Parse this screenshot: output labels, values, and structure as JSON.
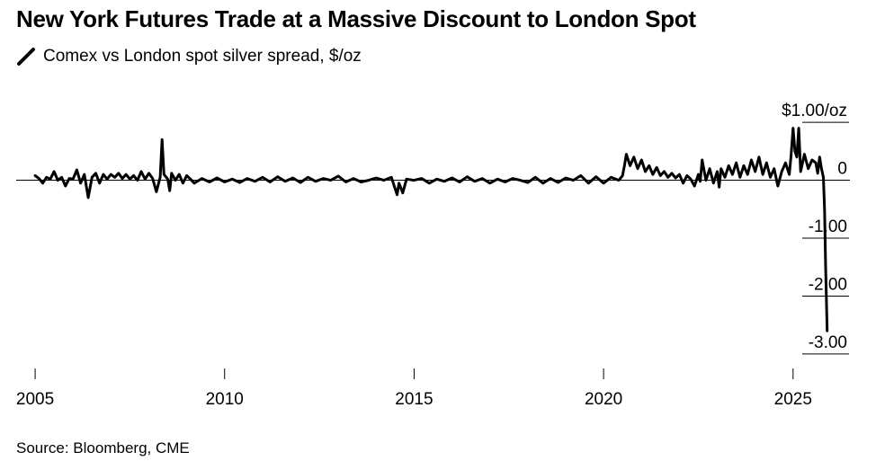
{
  "title": "New York Futures Trade at a Massive Discount to London Spot",
  "legend": {
    "label": "Comex vs London spot silver spread, $/oz",
    "color": "#000000"
  },
  "source": "Source: Bloomberg, CME",
  "chart_data": {
    "type": "line",
    "title": "New York Futures Trade at a Massive Discount to London Spot",
    "series": [
      {
        "name": "Comex vs London spot silver spread, $/oz",
        "color": "#000000",
        "points": [
          [
            2005.0,
            0.08
          ],
          [
            2005.1,
            0.03
          ],
          [
            2005.2,
            -0.05
          ],
          [
            2005.3,
            0.05
          ],
          [
            2005.4,
            0.02
          ],
          [
            2005.5,
            0.15
          ],
          [
            2005.6,
            0.0
          ],
          [
            2005.7,
            0.05
          ],
          [
            2005.8,
            -0.1
          ],
          [
            2005.9,
            0.03
          ],
          [
            2006.0,
            0.02
          ],
          [
            2006.1,
            0.18
          ],
          [
            2006.2,
            -0.05
          ],
          [
            2006.3,
            0.1
          ],
          [
            2006.4,
            -0.3
          ],
          [
            2006.5,
            0.05
          ],
          [
            2006.6,
            0.12
          ],
          [
            2006.7,
            -0.05
          ],
          [
            2006.8,
            0.1
          ],
          [
            2006.9,
            0.02
          ],
          [
            2007.0,
            0.1
          ],
          [
            2007.1,
            0.05
          ],
          [
            2007.2,
            0.12
          ],
          [
            2007.3,
            0.03
          ],
          [
            2007.4,
            0.1
          ],
          [
            2007.5,
            0.02
          ],
          [
            2007.6,
            0.08
          ],
          [
            2007.7,
            0.0
          ],
          [
            2007.8,
            0.15
          ],
          [
            2007.9,
            0.02
          ],
          [
            2008.0,
            0.12
          ],
          [
            2008.1,
            0.03
          ],
          [
            2008.2,
            -0.2
          ],
          [
            2008.3,
            0.05
          ],
          [
            2008.35,
            0.7
          ],
          [
            2008.4,
            0.1
          ],
          [
            2008.5,
            0.02
          ],
          [
            2008.55,
            -0.18
          ],
          [
            2008.6,
            0.12
          ],
          [
            2008.7,
            0.0
          ],
          [
            2008.8,
            0.1
          ],
          [
            2008.9,
            -0.05
          ],
          [
            2009.0,
            0.08
          ],
          [
            2009.1,
            0.02
          ],
          [
            2009.2,
            -0.05
          ],
          [
            2009.4,
            0.03
          ],
          [
            2009.6,
            -0.03
          ],
          [
            2009.8,
            0.04
          ],
          [
            2010.0,
            -0.03
          ],
          [
            2010.2,
            0.02
          ],
          [
            2010.4,
            -0.04
          ],
          [
            2010.6,
            0.03
          ],
          [
            2010.8,
            -0.02
          ],
          [
            2011.0,
            0.05
          ],
          [
            2011.2,
            -0.03
          ],
          [
            2011.4,
            0.06
          ],
          [
            2011.6,
            -0.02
          ],
          [
            2011.8,
            0.04
          ],
          [
            2012.0,
            -0.04
          ],
          [
            2012.2,
            0.05
          ],
          [
            2012.4,
            -0.02
          ],
          [
            2012.6,
            0.03
          ],
          [
            2012.8,
            0.0
          ],
          [
            2013.0,
            0.07
          ],
          [
            2013.2,
            -0.03
          ],
          [
            2013.4,
            0.03
          ],
          [
            2013.6,
            -0.03
          ],
          [
            2013.8,
            0.0
          ],
          [
            2014.0,
            0.04
          ],
          [
            2014.2,
            0.0
          ],
          [
            2014.4,
            0.05
          ],
          [
            2014.55,
            -0.25
          ],
          [
            2014.6,
            -0.05
          ],
          [
            2014.7,
            -0.22
          ],
          [
            2014.8,
            0.02
          ],
          [
            2015.0,
            0.0
          ],
          [
            2015.2,
            0.03
          ],
          [
            2015.4,
            -0.05
          ],
          [
            2015.6,
            0.02
          ],
          [
            2015.8,
            -0.02
          ],
          [
            2016.0,
            0.04
          ],
          [
            2016.2,
            -0.03
          ],
          [
            2016.4,
            0.06
          ],
          [
            2016.6,
            -0.02
          ],
          [
            2016.8,
            0.03
          ],
          [
            2017.0,
            -0.05
          ],
          [
            2017.2,
            0.02
          ],
          [
            2017.4,
            -0.03
          ],
          [
            2017.6,
            0.03
          ],
          [
            2017.8,
            0.0
          ],
          [
            2018.0,
            -0.04
          ],
          [
            2018.2,
            0.05
          ],
          [
            2018.4,
            -0.05
          ],
          [
            2018.6,
            0.03
          ],
          [
            2018.8,
            -0.04
          ],
          [
            2019.0,
            0.04
          ],
          [
            2019.2,
            0.0
          ],
          [
            2019.4,
            0.08
          ],
          [
            2019.6,
            -0.05
          ],
          [
            2019.8,
            0.06
          ],
          [
            2020.0,
            -0.05
          ],
          [
            2020.2,
            0.05
          ],
          [
            2020.4,
            0.0
          ],
          [
            2020.5,
            0.08
          ],
          [
            2020.55,
            0.25
          ],
          [
            2020.6,
            0.45
          ],
          [
            2020.7,
            0.25
          ],
          [
            2020.8,
            0.4
          ],
          [
            2020.9,
            0.2
          ],
          [
            2021.0,
            0.35
          ],
          [
            2021.1,
            0.15
          ],
          [
            2021.2,
            0.25
          ],
          [
            2021.3,
            0.1
          ],
          [
            2021.4,
            0.22
          ],
          [
            2021.5,
            0.08
          ],
          [
            2021.6,
            0.15
          ],
          [
            2021.7,
            0.05
          ],
          [
            2021.8,
            0.12
          ],
          [
            2021.9,
            0.04
          ],
          [
            2022.0,
            0.1
          ],
          [
            2022.1,
            -0.05
          ],
          [
            2022.2,
            0.08
          ],
          [
            2022.3,
            0.02
          ],
          [
            2022.4,
            -0.1
          ],
          [
            2022.5,
            0.1
          ],
          [
            2022.55,
            -0.02
          ],
          [
            2022.6,
            0.35
          ],
          [
            2022.7,
            0.0
          ],
          [
            2022.8,
            0.2
          ],
          [
            2022.9,
            -0.05
          ],
          [
            2023.0,
            0.15
          ],
          [
            2023.05,
            -0.12
          ],
          [
            2023.1,
            0.2
          ],
          [
            2023.2,
            0.05
          ],
          [
            2023.3,
            0.25
          ],
          [
            2023.4,
            0.1
          ],
          [
            2023.5,
            0.3
          ],
          [
            2023.6,
            0.05
          ],
          [
            2023.7,
            0.25
          ],
          [
            2023.8,
            0.1
          ],
          [
            2023.9,
            0.35
          ],
          [
            2024.0,
            0.15
          ],
          [
            2024.1,
            0.4
          ],
          [
            2024.2,
            0.1
          ],
          [
            2024.3,
            0.3
          ],
          [
            2024.4,
            0.05
          ],
          [
            2024.5,
            0.2
          ],
          [
            2024.6,
            -0.1
          ],
          [
            2024.7,
            0.15
          ],
          [
            2024.8,
            0.3
          ],
          [
            2024.9,
            0.1
          ],
          [
            2024.95,
            0.45
          ],
          [
            2025.0,
            0.9
          ],
          [
            2025.05,
            0.5
          ],
          [
            2025.1,
            0.4
          ],
          [
            2025.15,
            0.9
          ],
          [
            2025.2,
            0.15
          ],
          [
            2025.3,
            0.45
          ],
          [
            2025.4,
            0.2
          ],
          [
            2025.5,
            0.35
          ],
          [
            2025.6,
            0.3
          ],
          [
            2025.65,
            0.12
          ],
          [
            2025.7,
            0.4
          ],
          [
            2025.75,
            0.2
          ],
          [
            2025.8,
            0.05
          ],
          [
            2025.83,
            -0.5
          ],
          [
            2025.86,
            -1.5
          ],
          [
            2025.9,
            -2.6
          ]
        ]
      }
    ],
    "xlim": [
      2004.5,
      2026.5
    ],
    "ylim": [
      -3.25,
      1.25
    ],
    "x_ticks": [
      {
        "value": 2005,
        "label": "2005"
      },
      {
        "value": 2010,
        "label": "2010"
      },
      {
        "value": 2015,
        "label": "2015"
      },
      {
        "value": 2020,
        "label": "2020"
      },
      {
        "value": 2025,
        "label": "2025"
      }
    ],
    "y_ticks": [
      {
        "value": 1.0,
        "label": "$1.00/oz"
      },
      {
        "value": 0,
        "label": "0"
      },
      {
        "value": -1.0,
        "label": "-1.00"
      },
      {
        "value": -2.0,
        "label": "-2.00"
      },
      {
        "value": -3.0,
        "label": "-3.00"
      }
    ],
    "grid": false,
    "zero_line": true,
    "y_axis_position": "right"
  }
}
